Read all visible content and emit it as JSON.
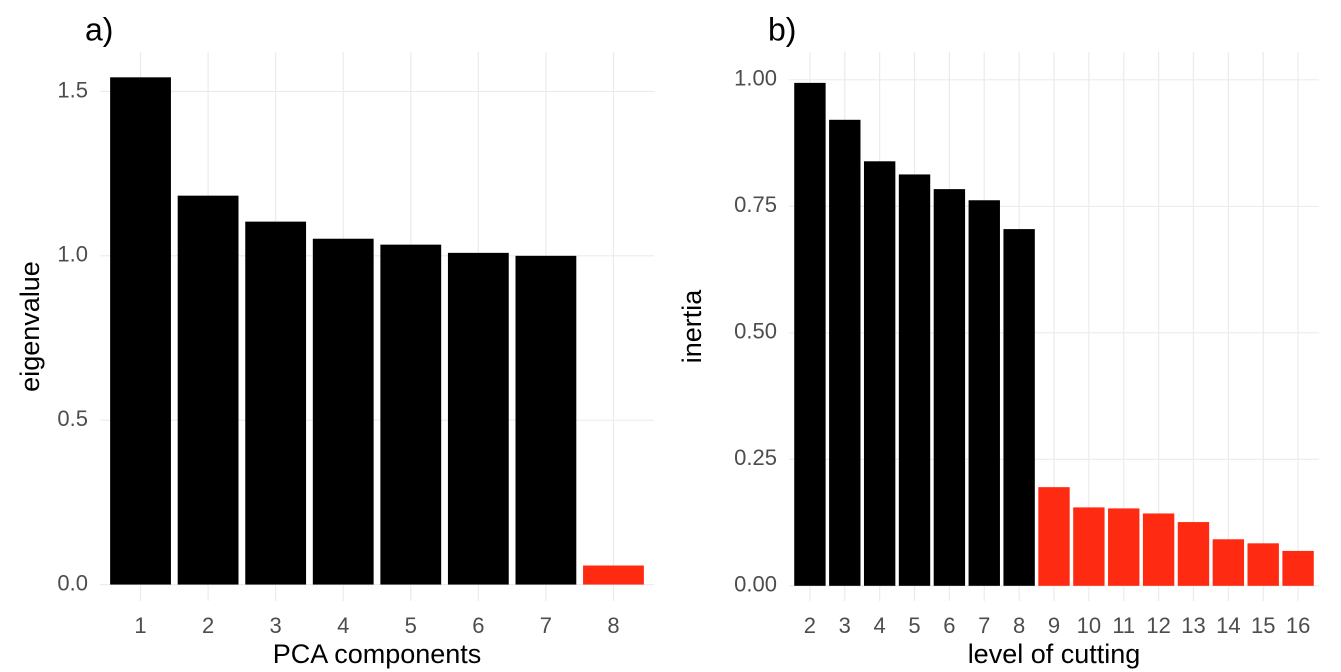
{
  "chart_data": [
    {
      "type": "bar",
      "title": "a)",
      "x_label": "PCA components",
      "y_label": "eigenvalue",
      "categories": [
        "1",
        "2",
        "3",
        "4",
        "5",
        "6",
        "7",
        "8"
      ],
      "values": [
        1.543,
        1.183,
        1.104,
        1.052,
        1.034,
        1.009,
        1.0,
        0.058
      ],
      "colors": [
        "#000000",
        "#000000",
        "#000000",
        "#000000",
        "#000000",
        "#000000",
        "#000000",
        "#ff2a12"
      ],
      "ylim": [
        -0.05,
        1.62
      ],
      "yticks": [
        {
          "value": 0,
          "label": "0.0"
        },
        0.5,
        {
          "value": 1,
          "label": "1.0"
        },
        1.5
      ],
      "grid": true
    },
    {
      "type": "bar",
      "title": "b)",
      "x_label": "level of cutting",
      "y_label": "inertia",
      "categories": [
        "2",
        "3",
        "4",
        "5",
        "6",
        "7",
        "8",
        "9",
        "10",
        "11",
        "12",
        "13",
        "14",
        "15",
        "16"
      ],
      "values": [
        0.994,
        0.921,
        0.839,
        0.813,
        0.784,
        0.762,
        0.705,
        0.195,
        0.155,
        0.153,
        0.143,
        0.126,
        0.092,
        0.084,
        0.069
      ],
      "colors": [
        "#000000",
        "#000000",
        "#000000",
        "#000000",
        "#000000",
        "#000000",
        "#000000",
        "#ff2a12",
        "#ff2a12",
        "#ff2a12",
        "#ff2a12",
        "#ff2a12",
        "#ff2a12",
        "#ff2a12",
        "#ff2a12"
      ],
      "ylim": [
        -0.03,
        1.055
      ],
      "yticks": [
        {
          "value": 0,
          "label": "0.00"
        },
        0.25,
        {
          "value": 0.5,
          "label": "0.50"
        },
        0.75,
        {
          "value": 1,
          "label": "1.00"
        }
      ],
      "grid": true
    }
  ]
}
